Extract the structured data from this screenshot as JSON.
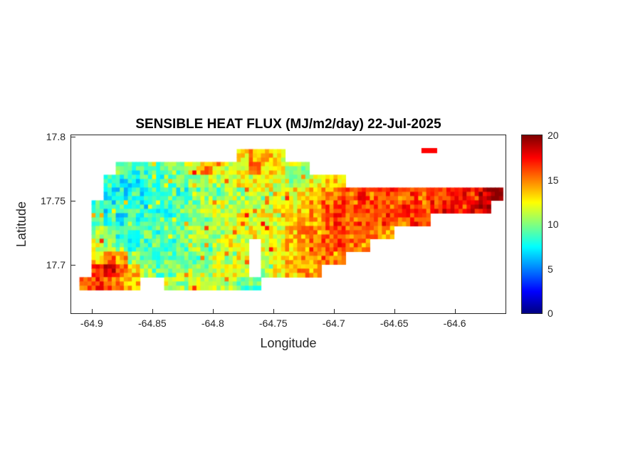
{
  "figure": {
    "background": "#ffffff",
    "axis_color": "#262626",
    "title_color": "#000000"
  },
  "chart_data": {
    "type": "heatmap",
    "title": "SENSIBLE HEAT FLUX (MJ/m2/day) 22-Jul-2025",
    "xlabel": "Longitude",
    "ylabel": "Latitude",
    "xlim": [
      -64.917,
      -64.558
    ],
    "ylim": [
      17.662,
      17.801
    ],
    "xticks": [
      -64.9,
      -64.85,
      -64.8,
      -64.75,
      -64.7,
      -64.65,
      -64.6
    ],
    "xtick_labels": [
      "-64.9",
      "-64.85",
      "-64.8",
      "-64.75",
      "-64.7",
      "-64.65",
      "-64.6"
    ],
    "yticks": [
      17.7,
      17.75,
      17.8
    ],
    "ytick_labels": [
      "17.7",
      "17.75",
      "17.8"
    ],
    "grid_lines": "off",
    "colormap": "jet",
    "clim": [
      0,
      20
    ],
    "colorbar_position": "right",
    "colorbar_ticks": [
      0,
      5,
      10,
      15,
      20
    ],
    "colorbar_tick_labels": [
      "0",
      "5",
      "10",
      "15",
      "20"
    ],
    "grid": {
      "lon_start": -64.905,
      "lon_step": 0.01,
      "lat_start": 17.795,
      "lat_step": -0.01,
      "value_encoding": "each char is one 0.01-deg cell: '.' = no data; chars '0'-'9','A'-'J' = sensible heat flux (MJ/m2/day) = index of char in '0123456789ABCDEFGHIJ' + 0.5",
      "rows": [
        "....................................",
        ".............CEDC...................",
        "...9889A9CECBCFDCBA.................",
        "..8778899ABABCBCBABCDD..............",
        "..77878989A9BABABCCDEFFGFGFGFGGHGIJ.",
        ".878878899ABABBACCDEFGFGGFGGFGHGHI..",
        ".98788989A9BBCBCBCDEFGFGFGFGF.......",
        ".A9889899ABACBCCBDEEFGFGFE..........",
        ".BA988989A9BCB.CCDEFFGFE............",
        ".DFEA989A9ABAC.BCDEEFE..............",
        ".GHFDA99ABABCB.ACDED................",
        "FGFED..BABABA99.....................",
        "....................................",
        "...................................."
      ]
    },
    "islets": [
      {
        "lon": -64.621,
        "lat": 17.789,
        "w": 0.013,
        "h": 0.004,
        "value": 17.5
      }
    ]
  }
}
